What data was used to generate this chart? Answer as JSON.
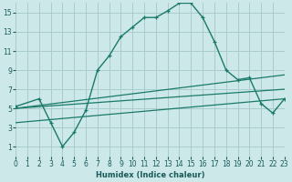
{
  "xlabel": "Humidex (Indice chaleur)",
  "bg_color": "#cce8e8",
  "grid_color": "#aacccc",
  "line_color": "#1a7a6a",
  "xlim": [
    0,
    23
  ],
  "ylim": [
    0,
    16
  ],
  "xticks": [
    0,
    1,
    2,
    3,
    4,
    5,
    6,
    7,
    8,
    9,
    10,
    11,
    12,
    13,
    14,
    15,
    16,
    17,
    18,
    19,
    20,
    21,
    22,
    23
  ],
  "yticks": [
    1,
    3,
    5,
    7,
    9,
    11,
    13,
    15
  ],
  "series1_x": [
    0,
    2,
    3,
    4,
    5,
    6,
    7,
    8,
    9,
    10,
    11,
    12,
    13,
    14,
    15,
    16,
    17,
    18,
    19,
    20,
    21,
    22,
    23
  ],
  "series1_y": [
    5.2,
    6.0,
    3.5,
    1.0,
    2.5,
    4.8,
    9.0,
    10.5,
    12.5,
    13.5,
    14.5,
    14.5,
    15.2,
    16.0,
    16.0,
    14.5,
    12.0,
    9.0,
    8.0,
    8.2,
    5.5,
    4.5,
    6.0
  ],
  "series2_x": [
    0,
    23
  ],
  "series2_y": [
    5.0,
    8.5
  ],
  "series3_x": [
    0,
    23
  ],
  "series3_y": [
    5.0,
    7.0
  ],
  "series4_x": [
    0,
    23
  ],
  "series4_y": [
    3.5,
    6.0
  ]
}
